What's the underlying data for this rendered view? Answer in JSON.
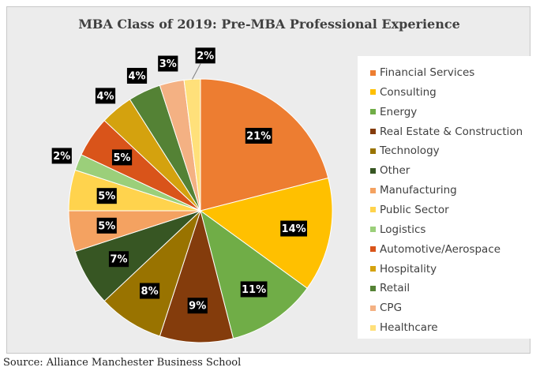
{
  "chart_data": {
    "type": "pie",
    "title": "MBA Class of 2019: Pre-MBA Professional Experience",
    "source": "Source: Alliance Manchester Business School",
    "legend_position": "right",
    "slices": [
      {
        "label": "Financial Services",
        "value": 21,
        "display": "21%",
        "color": "#ed7d31"
      },
      {
        "label": "Consulting",
        "value": 14,
        "display": "14%",
        "color": "#ffc000"
      },
      {
        "label": "Energy",
        "value": 11,
        "display": "11%",
        "color": "#70ad47"
      },
      {
        "label": "Real Estate & Construction",
        "value": 9,
        "display": "9%",
        "color": "#843c0c"
      },
      {
        "label": "Technology",
        "value": 8,
        "display": "8%",
        "color": "#997300"
      },
      {
        "label": "Other",
        "value": 7,
        "display": "7%",
        "color": "#375623"
      },
      {
        "label": "Manufacturing",
        "value": 5,
        "display": "5%",
        "color": "#f4a261"
      },
      {
        "label": "Public Sector",
        "value": 5,
        "display": "5%",
        "color": "#ffd34d"
      },
      {
        "label": "Logistics",
        "value": 2,
        "display": "2%",
        "color": "#9bcf7a"
      },
      {
        "label": "Automotive/Aerospace",
        "value": 5,
        "display": "5%",
        "color": "#d9541a"
      },
      {
        "label": "Hospitality",
        "value": 4,
        "display": "4%",
        "color": "#d4a20e"
      },
      {
        "label": "Retail",
        "value": 4,
        "display": "4%",
        "color": "#548235"
      },
      {
        "label": "CPG",
        "value": 3,
        "display": "3%",
        "color": "#f4b183"
      },
      {
        "label": "Healthcare",
        "value": 2,
        "display": "2%",
        "color": "#ffe07a"
      }
    ]
  }
}
